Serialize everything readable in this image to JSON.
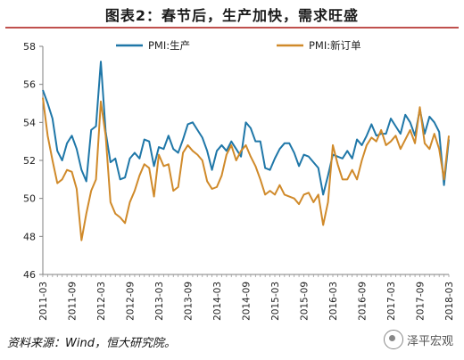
{
  "title": "图表2：春节后，生产加快，需求旺盛",
  "source": "资料来源：Wind，恒大研究院。",
  "watermark": "泽平宏观",
  "colors": {
    "production": "#1f77a8",
    "new_orders": "#d08a2a",
    "title_rule": "#c0504d"
  },
  "chart_data": {
    "type": "line",
    "title": "",
    "xlabel": "",
    "ylabel": "",
    "ylim": [
      46,
      58
    ],
    "yticks": [
      46,
      48,
      50,
      52,
      54,
      56,
      58
    ],
    "xtick_labels": [
      "2011-03",
      "2011-09",
      "2012-03",
      "2012-09",
      "2013-03",
      "2013-09",
      "2014-03",
      "2014-09",
      "2015-03",
      "2015-09",
      "2016-03",
      "2016-09",
      "2017-03",
      "2017-09",
      "2018-03"
    ],
    "legend_position": "top",
    "grid": false,
    "x": [
      "2011-03",
      "2011-04",
      "2011-05",
      "2011-06",
      "2011-07",
      "2011-08",
      "2011-09",
      "2011-10",
      "2011-11",
      "2011-12",
      "2012-01",
      "2012-02",
      "2012-03",
      "2012-04",
      "2012-05",
      "2012-06",
      "2012-07",
      "2012-08",
      "2012-09",
      "2012-10",
      "2012-11",
      "2012-12",
      "2013-01",
      "2013-02",
      "2013-03",
      "2013-04",
      "2013-05",
      "2013-06",
      "2013-07",
      "2013-08",
      "2013-09",
      "2013-10",
      "2013-11",
      "2013-12",
      "2014-01",
      "2014-02",
      "2014-03",
      "2014-04",
      "2014-05",
      "2014-06",
      "2014-07",
      "2014-08",
      "2014-09",
      "2014-10",
      "2014-11",
      "2014-12",
      "2015-01",
      "2015-02",
      "2015-03",
      "2015-04",
      "2015-05",
      "2015-06",
      "2015-07",
      "2015-08",
      "2015-09",
      "2015-10",
      "2015-11",
      "2015-12",
      "2016-01",
      "2016-02",
      "2016-03",
      "2016-04",
      "2016-05",
      "2016-06",
      "2016-07",
      "2016-08",
      "2016-09",
      "2016-10",
      "2016-11",
      "2016-12",
      "2017-01",
      "2017-02",
      "2017-03",
      "2017-04",
      "2017-05",
      "2017-06",
      "2017-07",
      "2017-08",
      "2017-09",
      "2017-10",
      "2017-11",
      "2017-12",
      "2018-01",
      "2018-02",
      "2018-03"
    ],
    "series": [
      {
        "name": "PMI:生产",
        "values": [
          55.7,
          55.0,
          54.2,
          52.5,
          52.0,
          52.9,
          53.3,
          52.6,
          51.5,
          50.9,
          53.6,
          53.8,
          57.2,
          53.5,
          51.9,
          52.1,
          51.0,
          51.1,
          52.1,
          52.4,
          52.1,
          53.1,
          53.0,
          51.7,
          52.7,
          52.6,
          53.3,
          52.6,
          52.4,
          53.1,
          53.9,
          54.0,
          53.6,
          53.2,
          52.5,
          51.5,
          52.5,
          52.8,
          52.5,
          53.0,
          52.6,
          52.2,
          54.0,
          53.7,
          53.0,
          53.0,
          51.6,
          51.5,
          52.1,
          52.6,
          52.9,
          52.9,
          52.4,
          51.7,
          52.3,
          52.2,
          51.9,
          51.6,
          50.2,
          51.2,
          52.3,
          52.2,
          52.1,
          52.5,
          52.1,
          53.1,
          52.8,
          53.3,
          53.9,
          53.3,
          53.4,
          53.4,
          54.2,
          53.8,
          53.4,
          54.4,
          54.0,
          53.3,
          54.7,
          53.4,
          54.3,
          54.0,
          53.5,
          50.7,
          53.1
        ]
      },
      {
        "name": "PMI:新订单",
        "values": [
          55.3,
          53.3,
          52.0,
          50.8,
          51.0,
          51.5,
          51.4,
          50.5,
          47.8,
          49.2,
          50.4,
          51.0,
          55.1,
          53.3,
          49.8,
          49.2,
          49.0,
          48.7,
          49.8,
          50.4,
          51.2,
          51.8,
          51.6,
          50.1,
          52.3,
          51.7,
          51.8,
          50.4,
          50.6,
          52.4,
          52.8,
          52.5,
          52.3,
          52.0,
          50.9,
          50.5,
          50.6,
          51.2,
          52.3,
          52.8,
          52.0,
          52.5,
          52.8,
          52.2,
          51.7,
          51.0,
          50.2,
          50.4,
          50.2,
          50.7,
          50.2,
          50.1,
          50.0,
          49.7,
          50.2,
          50.3,
          49.8,
          50.2,
          48.6,
          49.8,
          52.8,
          51.8,
          51.0,
          51.0,
          51.5,
          51.0,
          52.0,
          52.8,
          53.2,
          53.0,
          53.6,
          52.8,
          53.0,
          53.3,
          52.6,
          53.1,
          53.6,
          52.9,
          54.8,
          52.9,
          52.6,
          53.4,
          52.6,
          51.0,
          53.3
        ]
      }
    ]
  }
}
